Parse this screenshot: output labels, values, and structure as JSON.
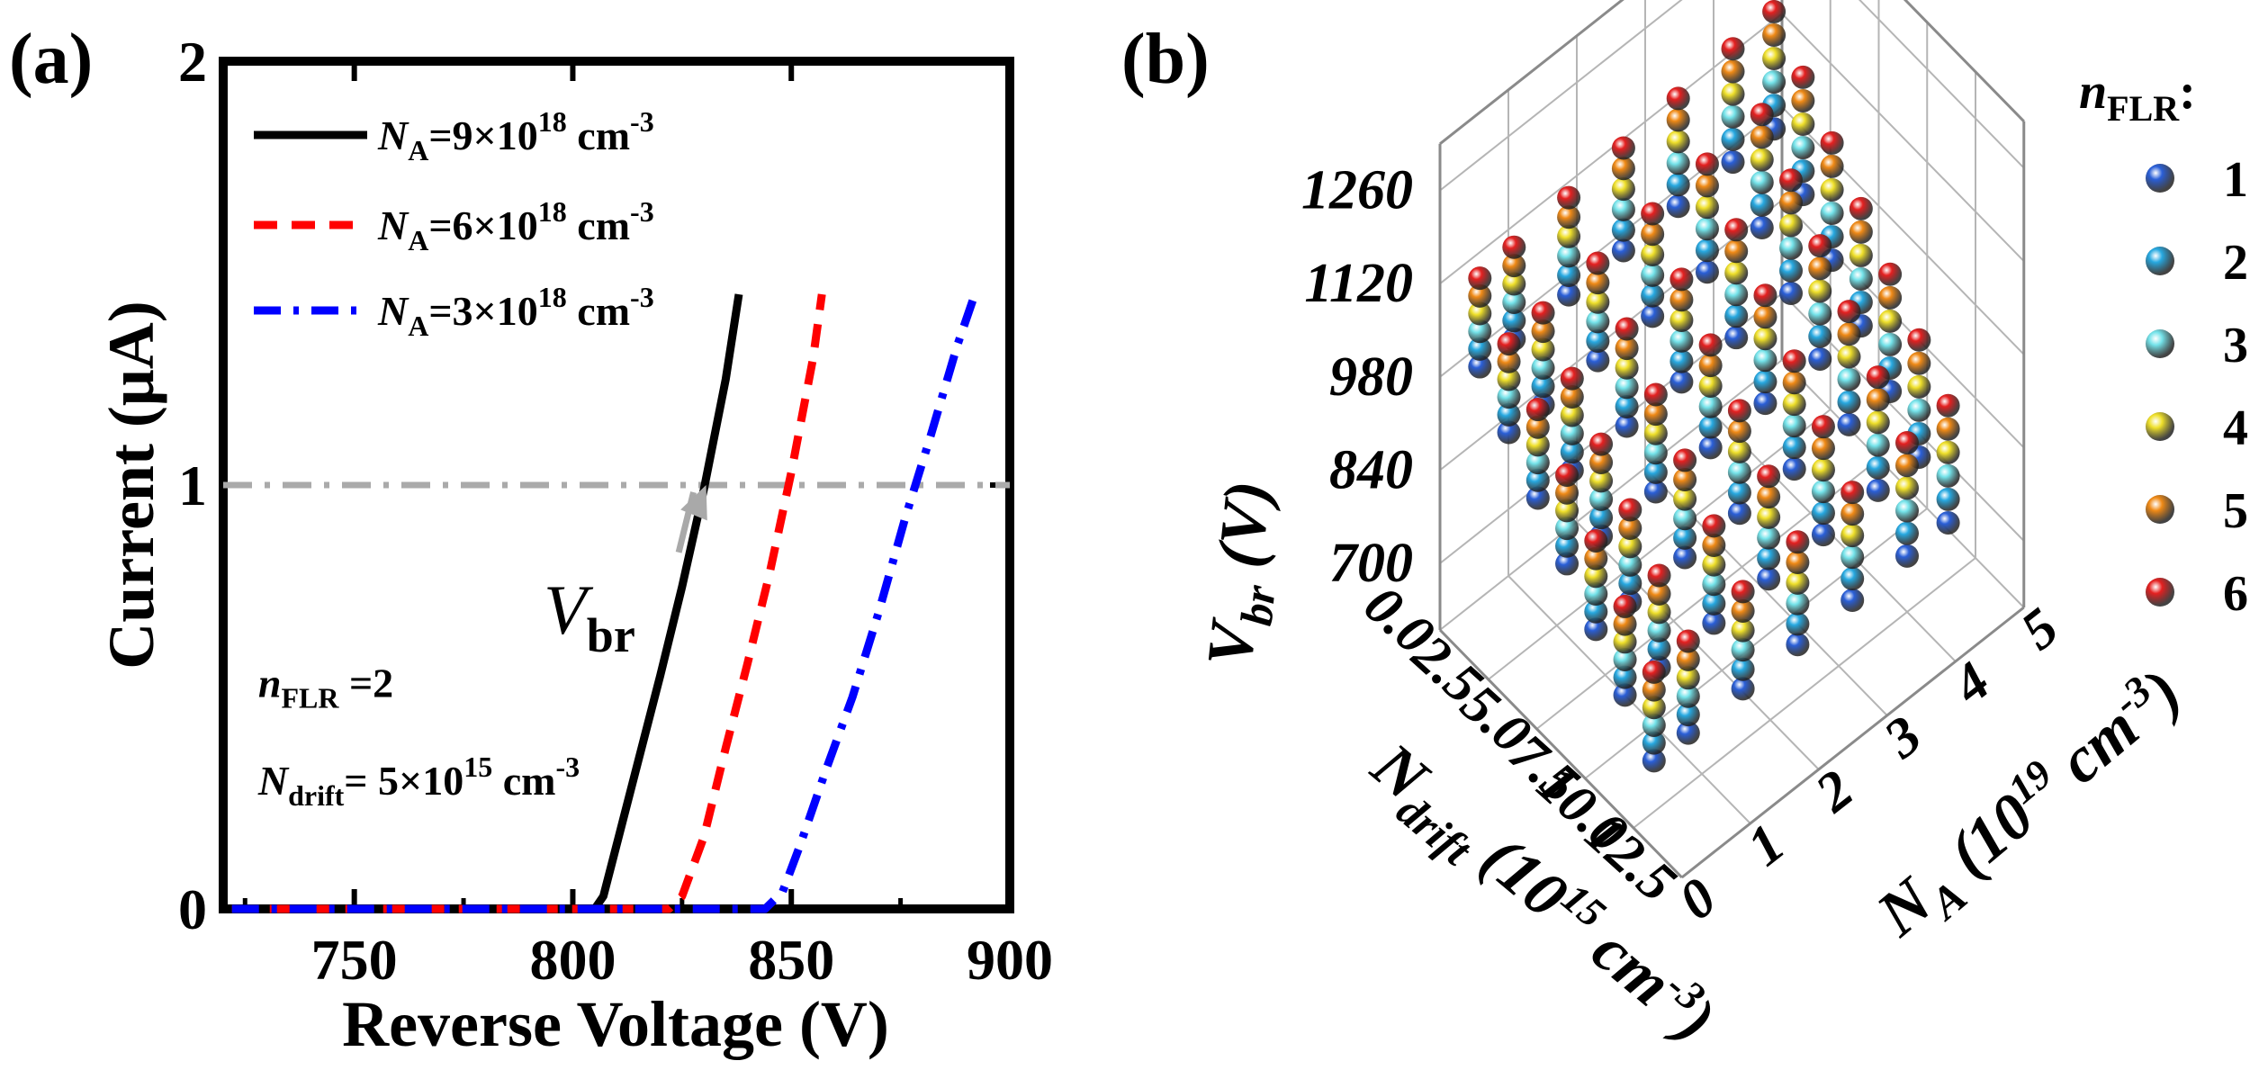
{
  "chart_data": [
    {
      "panel": "(a)",
      "type": "line",
      "xlabel": "Reverse Voltage (V)",
      "ylabel": "Current (μA)",
      "xlim": [
        720,
        900
      ],
      "ylim": [
        0,
        2
      ],
      "x_ticks": [
        750,
        800,
        850,
        900
      ],
      "y_ticks": [
        0,
        1,
        2
      ],
      "reference_line": {
        "y": 1,
        "style": "dash-dot",
        "color": "#aaaaaa"
      },
      "annotation": {
        "symbol": "V",
        "subscript": "br",
        "points_to": {
          "x": 830.5,
          "y": 1.0
        },
        "text_at": {
          "x": 816,
          "y": 0.82
        }
      },
      "notes": [
        {
          "prefix": "n",
          "sub": "FLR",
          "text": " =2",
          "at": {
            "x": 728,
            "y": 0.5
          }
        },
        {
          "prefix": "N",
          "sub": "drift",
          "text": "= 5×10",
          "sup": "15",
          "tail": " cm",
          "sup2": "-3",
          "at": {
            "x": 728,
            "y": 0.27
          }
        }
      ],
      "series": [
        {
          "name": "N_A=9×10^18 cm^-3",
          "label_N": "N",
          "label_sub": "A",
          "label_eq": "=9×10",
          "label_sup": "18",
          "label_unit": " cm",
          "label_unit_sup": "-3",
          "color": "#000000",
          "style": "solid",
          "x": [
            722,
            780,
            805,
            807,
            810,
            815,
            820,
            825,
            830,
            835,
            838
          ],
          "y": [
            0,
            0,
            0,
            0.03,
            0.15,
            0.35,
            0.55,
            0.76,
            0.99,
            1.25,
            1.45
          ]
        },
        {
          "name": "N_A=6×10^18 cm^-3",
          "label_N": "N",
          "label_sub": "A",
          "label_eq": "=6×10",
          "label_sup": "18",
          "label_unit": " cm",
          "label_unit_sup": "-3",
          "color": "#ff0000",
          "style": "dashed",
          "x": [
            722,
            790,
            822,
            825,
            830,
            835,
            840,
            845,
            850,
            855,
            857
          ],
          "y": [
            0,
            0,
            0,
            0.03,
            0.17,
            0.38,
            0.58,
            0.79,
            1.03,
            1.3,
            1.45
          ]
        },
        {
          "name": "N_A=3×10^18 cm^-3",
          "label_N": "N",
          "label_sub": "A",
          "label_eq": "=3×10",
          "label_sup": "18",
          "label_unit": " cm",
          "label_unit_sup": "-3",
          "color": "#0000ff",
          "style": "dash-dot",
          "x": [
            722,
            800,
            844,
            848,
            852,
            858,
            864,
            870,
            876,
            882,
            888,
            892
          ],
          "y": [
            0,
            0,
            0,
            0.04,
            0.15,
            0.33,
            0.5,
            0.7,
            0.92,
            1.12,
            1.33,
            1.45
          ]
        }
      ]
    },
    {
      "panel": "(b)",
      "type": "scatter3d",
      "zlabel_sym": "V",
      "zlabel_sub": "br",
      "zlabel_unit": " (V)",
      "xlabel_sym": "N",
      "xlabel_sub": "drift",
      "xlabel_unit_pre": " (10",
      "xlabel_unit_sup": "15",
      "xlabel_unit_post": " cm",
      "xlabel_unit_sup2": "-3",
      "xlabel_close": ")",
      "ylabel_sym": "N",
      "ylabel_sub": "A",
      "ylabel_unit_pre": " (10",
      "ylabel_unit_sup": "19",
      "ylabel_unit_post": " cm",
      "ylabel_unit_sup2": "-3",
      "ylabel_close": ")",
      "z_ticks": [
        "700",
        "840",
        "980",
        "1120",
        "1260"
      ],
      "z_values": [
        700,
        840,
        980,
        1120,
        1260
      ],
      "x_ticks": [
        "0.0",
        "2.5",
        "5.0",
        "7.5",
        "10.0",
        "12.5"
      ],
      "x_values": [
        0,
        2.5,
        5,
        7.5,
        10,
        12.5
      ],
      "y_ticks": [
        "0",
        "1",
        "2",
        "3",
        "4",
        "5"
      ],
      "y_values": [
        0,
        1,
        2,
        3,
        4,
        5
      ],
      "xlim": [
        0,
        12.5
      ],
      "ylim": [
        0,
        5
      ],
      "zlim": [
        600,
        1330
      ],
      "legend_title_sym": "n",
      "legend_title_sub": "FLR",
      "legend_title_colon": ":",
      "nflr_levels": [
        {
          "label": "1",
          "color": "#2a5fd8"
        },
        {
          "label": "2",
          "color": "#27a9e1"
        },
        {
          "label": "3",
          "color": "#74e3ea"
        },
        {
          "label": "4",
          "color": "#efe02a"
        },
        {
          "label": "5",
          "color": "#f08a16"
        },
        {
          "label": "6",
          "color": "#e52020"
        }
      ],
      "drift_samples": [
        1,
        2.5,
        4,
        5.5,
        7,
        8.5,
        10
      ],
      "na_samples": [
        0.3,
        0.8,
        1.6,
        2.4,
        3.2,
        4.0,
        4.6
      ],
      "vbr_model": {
        "base": 1010,
        "drift_coeff": -36,
        "nflr_step": 26,
        "na_coeff": 4
      }
    }
  ]
}
